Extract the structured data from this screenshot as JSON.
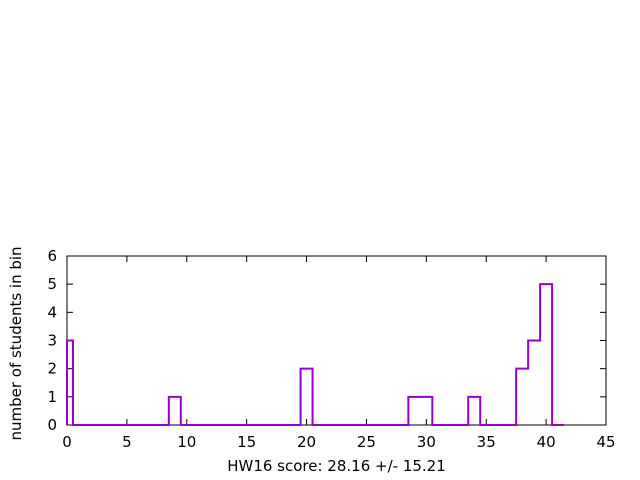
{
  "chart_data": {
    "type": "histogram",
    "xlabel": "HW16 score: 28.16 +/- 15.21",
    "ylabel": "number of students in bin",
    "xlim": [
      0,
      45
    ],
    "ylim": [
      0,
      6
    ],
    "xticks": [
      0,
      5,
      10,
      15,
      20,
      25,
      30,
      35,
      40,
      45
    ],
    "yticks": [
      0,
      1,
      2,
      3,
      4,
      5,
      6
    ],
    "grid": false,
    "line_color": "#9400d3",
    "bins": [
      {
        "x0": 0.0,
        "x1": 0.5,
        "count": 3
      },
      {
        "x0": 0.5,
        "x1": 8.5,
        "count": 0
      },
      {
        "x0": 8.5,
        "x1": 9.5,
        "count": 1
      },
      {
        "x0": 9.5,
        "x1": 19.5,
        "count": 0
      },
      {
        "x0": 19.5,
        "x1": 20.5,
        "count": 2
      },
      {
        "x0": 20.5,
        "x1": 28.5,
        "count": 0
      },
      {
        "x0": 28.5,
        "x1": 30.5,
        "count": 1
      },
      {
        "x0": 30.5,
        "x1": 33.5,
        "count": 0
      },
      {
        "x0": 33.5,
        "x1": 34.5,
        "count": 1
      },
      {
        "x0": 34.5,
        "x1": 37.5,
        "count": 0
      },
      {
        "x0": 37.5,
        "x1": 38.5,
        "count": 2
      },
      {
        "x0": 38.5,
        "x1": 39.5,
        "count": 3
      },
      {
        "x0": 39.5,
        "x1": 40.5,
        "count": 5
      },
      {
        "x0": 40.5,
        "x1": 41.5,
        "count": 0
      }
    ]
  }
}
